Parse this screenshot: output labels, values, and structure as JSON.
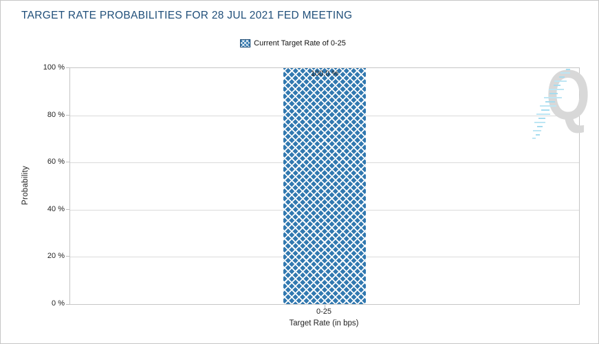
{
  "page": {
    "title": "TARGET RATE PROBABILITIES FOR 28 JUL 2021 FED MEETING"
  },
  "legend": {
    "items": [
      {
        "label": "Current Target Rate of 0-25",
        "swatch": "crosshatch-blue"
      }
    ]
  },
  "watermark": {
    "letter": "Q"
  },
  "colors": {
    "title": "#1F4E79",
    "bar_blue": "#3279B0",
    "grid": "#DADADA",
    "axis_border": "#C5C5C5",
    "watermark_gray": "#D8D8D8",
    "watermark_blue_dash": "#A9DCEF"
  },
  "chart_data": {
    "type": "bar",
    "title": "TARGET RATE PROBABILITIES FOR 28 JUL 2021 FED MEETING",
    "categories": [
      "0-25"
    ],
    "values": [
      100.0
    ],
    "value_labels": [
      "100.0 %"
    ],
    "series": [
      {
        "name": "Current Target Rate of 0-25",
        "values": [
          100.0
        ]
      }
    ],
    "xlabel": "Target Rate (in bps)",
    "ylabel": "Probability",
    "ylim": [
      0,
      100
    ],
    "ytick_values": [
      100,
      80,
      60,
      40,
      20,
      0
    ],
    "ytick_labels": [
      "100 %",
      "80 %",
      "60 %",
      "40 %",
      "20 %",
      "0 %"
    ],
    "grid": true,
    "legend_position": "top-center",
    "bar_pattern": "crosshatch"
  }
}
